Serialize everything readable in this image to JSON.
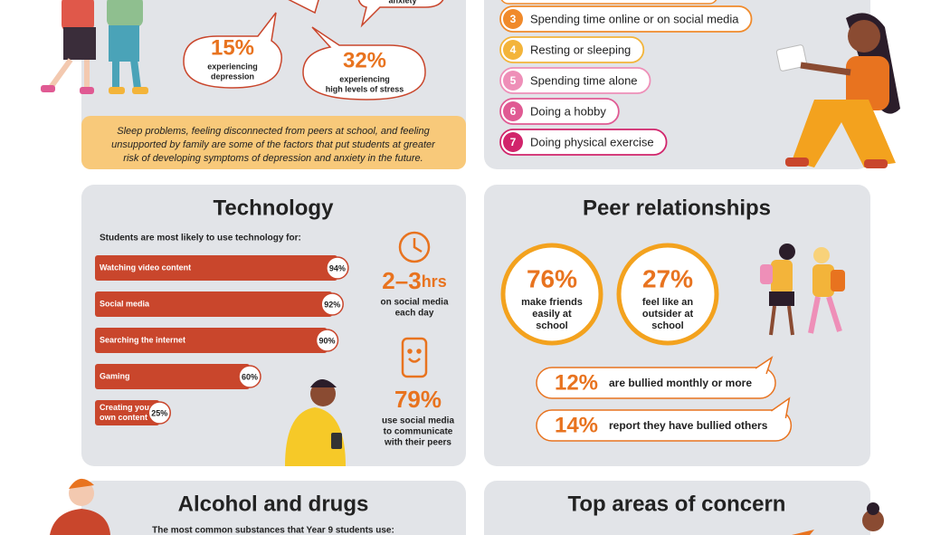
{
  "wellbeing": {
    "bubbles": [
      {
        "stat": "15%",
        "lines": [
          "experiencing",
          "depression"
        ]
      },
      {
        "stat": "32%",
        "lines": [
          "experiencing",
          "high levels of stress"
        ]
      }
    ],
    "partial_bubble": "anxiety",
    "note_lines": [
      "Sleep problems, feeling disconnected from peers at school, and feeling",
      "unsupported by family are some of the factors that put students at greater",
      "risk of developing symptoms of depression and anxiety in the future."
    ]
  },
  "coping": {
    "items": [
      {
        "number": "3",
        "text": "Spending time online or on social media",
        "color": "#f08a2b"
      },
      {
        "number": "4",
        "text": "Resting or sleeping",
        "color": "#f3b43a"
      },
      {
        "number": "5",
        "text": "Spending time alone",
        "color": "#ee8fb8"
      },
      {
        "number": "6",
        "text": "Doing a hobby",
        "color": "#e05a93"
      },
      {
        "number": "7",
        "text": "Doing physical exercise",
        "color": "#d1246b"
      }
    ]
  },
  "technology": {
    "title": "Technology",
    "subtitle": "Students are most likely to use technology for:",
    "bars": [
      {
        "lines": [
          "Watching video content"
        ],
        "value": 94,
        "value_label": "94%"
      },
      {
        "lines": [
          "Social media"
        ],
        "value": 92,
        "value_label": "92%"
      },
      {
        "lines": [
          "Searching the internet"
        ],
        "value": 90,
        "value_label": "90%"
      },
      {
        "lines": [
          "Gaming"
        ],
        "value": 60,
        "value_label": "60%"
      },
      {
        "lines": [
          "Creating your",
          "own content"
        ],
        "value": 25,
        "value_label": "25%"
      }
    ],
    "bar_color": "#c9462c",
    "hours": {
      "stat": "2–3",
      "unit": "hrs",
      "lines": [
        "on social media",
        "each day"
      ]
    },
    "social": {
      "stat": "79%",
      "lines": [
        "use social media",
        "to communicate",
        "with their peers"
      ]
    }
  },
  "peer": {
    "title": "Peer relationships",
    "circles": [
      {
        "stat": "76%",
        "lines": [
          "make friends",
          "easily at",
          "school"
        ]
      },
      {
        "stat": "27%",
        "lines": [
          "feel like an",
          "outsider at",
          "school"
        ]
      }
    ],
    "pills": [
      {
        "stat": "12%",
        "text": "are bullied monthly or more"
      },
      {
        "stat": "14%",
        "text": "report they have bullied others"
      }
    ]
  },
  "alcohol": {
    "title": "Alcohol and drugs",
    "subtitle": "The most common substances that Year 9 students use:"
  },
  "concern": {
    "title": "Top areas of concern"
  }
}
